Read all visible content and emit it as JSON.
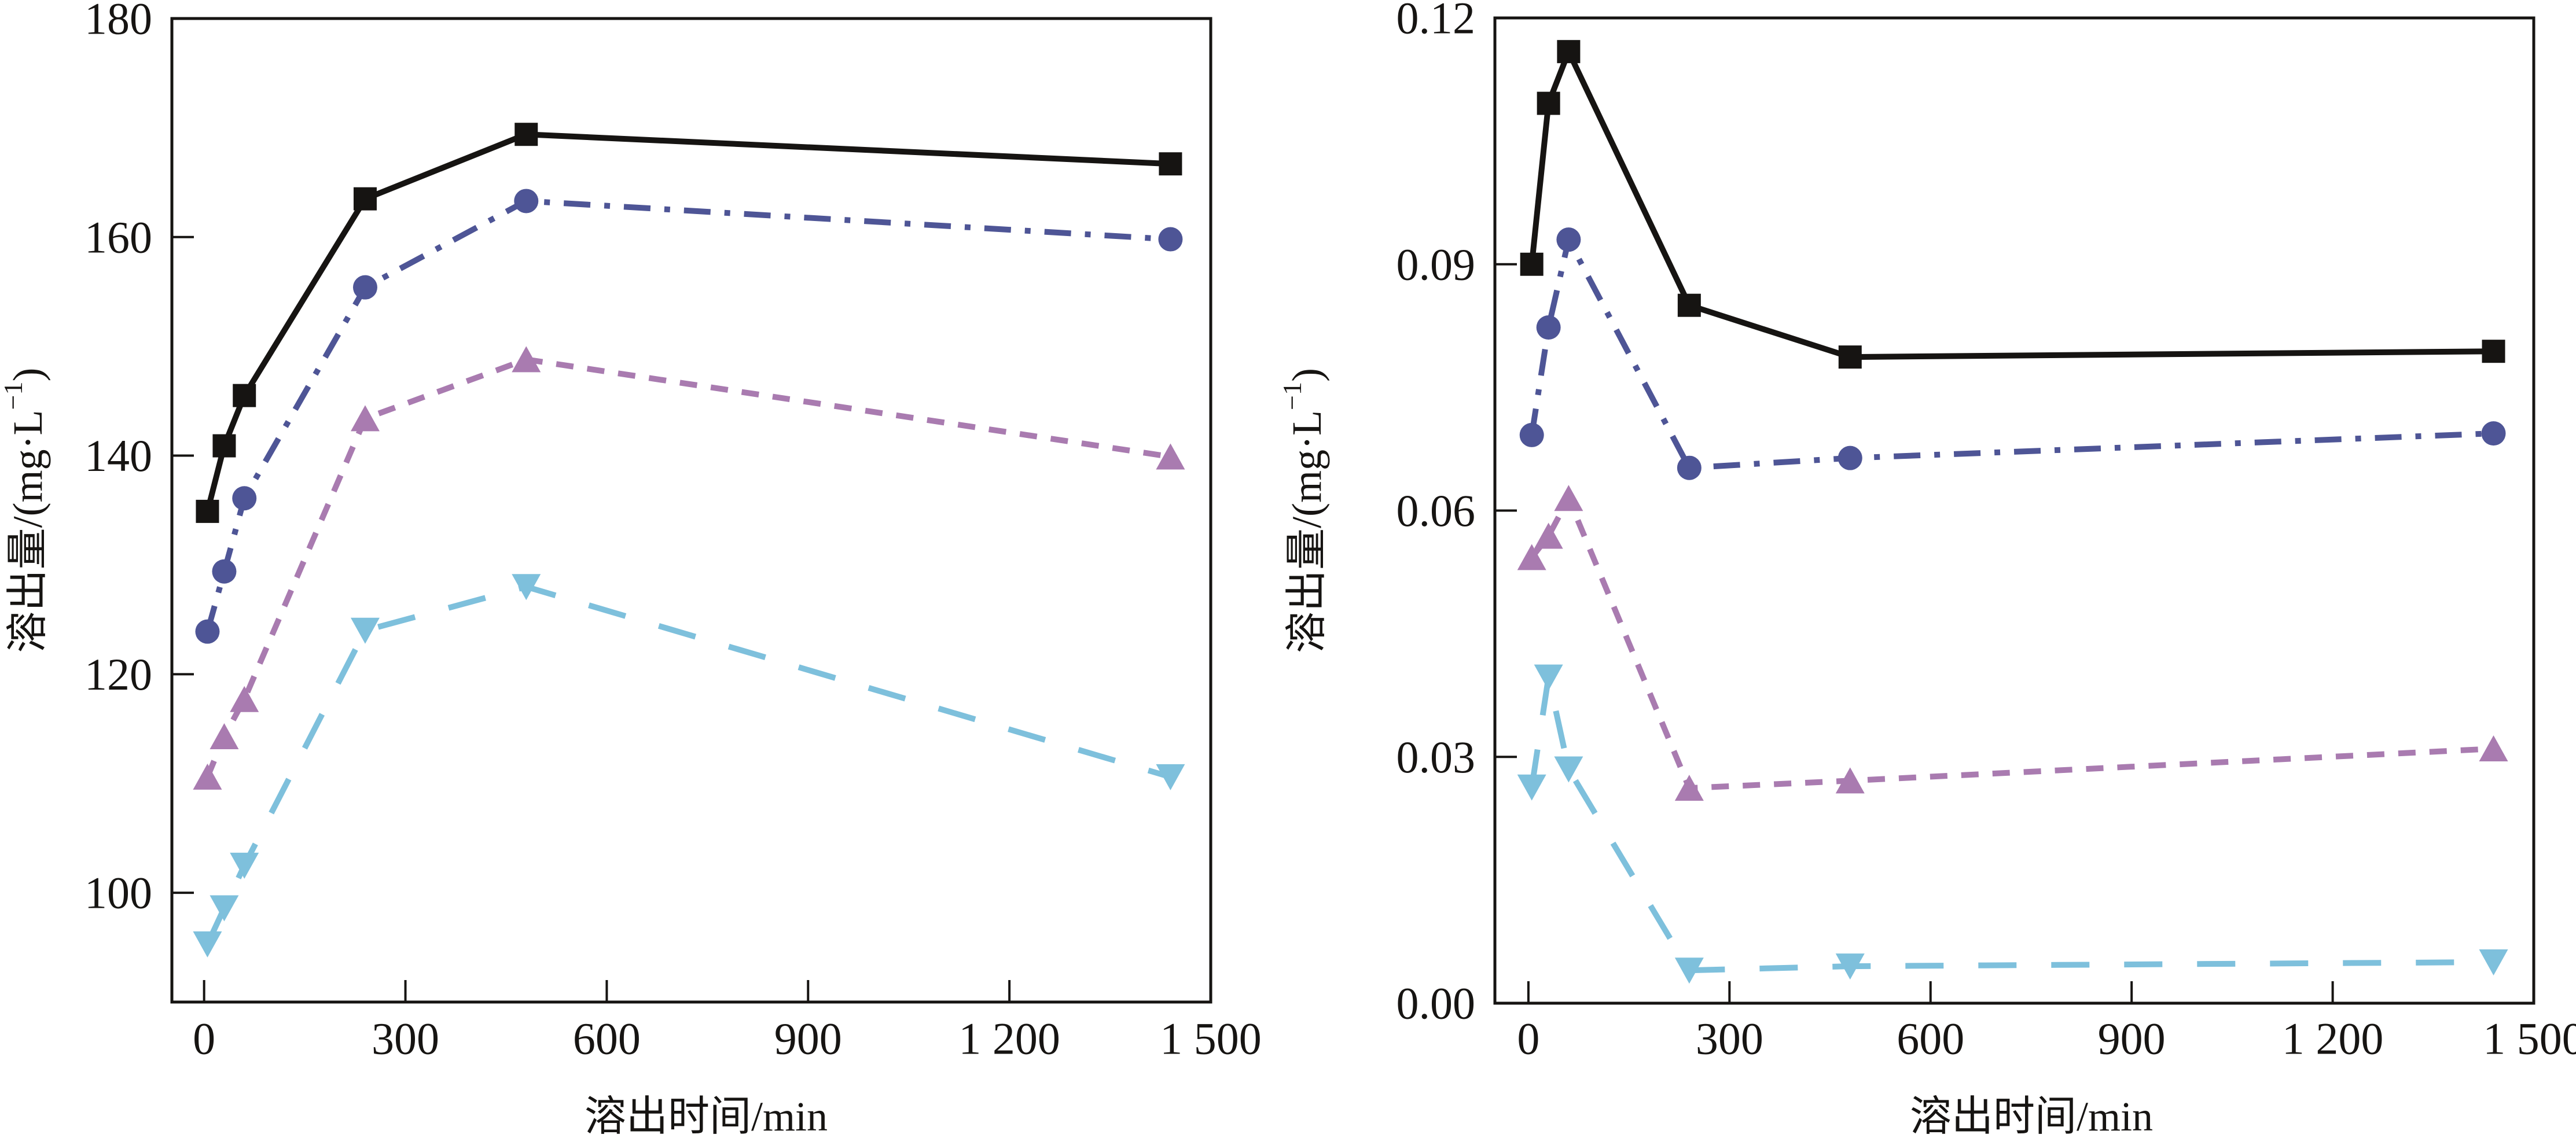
{
  "chart_data": [
    {
      "type": "line",
      "title": "",
      "xlabel": "溶出时间/min",
      "ylabel": "溶出量/(mg·L⁻¹)",
      "ylabel_segments": [
        {
          "text": "溶出量/(mg·L",
          "sup": false
        },
        {
          "text": "−1",
          "sup": true
        },
        {
          "text": ")",
          "sup": false
        }
      ],
      "xlim": [
        -48,
        1500
      ],
      "ylim": [
        90,
        180
      ],
      "xticks": [
        0,
        300,
        600,
        900,
        1200,
        1500
      ],
      "xtick_labels": [
        "0",
        "300",
        "600",
        "900",
        "1 200",
        "1 500"
      ],
      "yticks": [
        100,
        120,
        140,
        160,
        180
      ],
      "ytick_labels": [
        "100",
        "120",
        "140",
        "160",
        "180"
      ],
      "grid": false,
      "legend": null,
      "x": [
        5,
        30,
        60,
        240,
        480,
        1440
      ],
      "series": [
        {
          "marker": "square",
          "line": "solid",
          "color": "#161412",
          "values": [
            134.9,
            140.9,
            145.5,
            163.5,
            169.4,
            166.7
          ]
        },
        {
          "marker": "circle",
          "line": "dash-dot",
          "color": "#4e5596",
          "values": [
            123.9,
            129.4,
            136.1,
            155.4,
            163.3,
            159.8
          ]
        },
        {
          "marker": "triangle-up",
          "line": "short-dash",
          "color": "#a97bb0",
          "values": [
            110.6,
            114.3,
            117.7,
            143.4,
            148.8,
            139.9
          ]
        },
        {
          "marker": "triangle-down",
          "line": "long-dash",
          "color": "#7ec0dc",
          "values": [
            95.3,
            98.6,
            102.5,
            124.0,
            128.0,
            110.6
          ]
        }
      ]
    },
    {
      "type": "line",
      "title": "",
      "xlabel": "溶出时间/min",
      "ylabel": "溶出量/(mg·L⁻¹)",
      "ylabel_segments": [
        {
          "text": "溶出量/(mg·L",
          "sup": false
        },
        {
          "text": "−1",
          "sup": true
        },
        {
          "text": ")",
          "sup": false
        }
      ],
      "xlim": [
        -50,
        1500
      ],
      "ylim": [
        0,
        0.12
      ],
      "xticks": [
        0,
        300,
        600,
        900,
        1200,
        1500
      ],
      "xtick_labels": [
        "0",
        "300",
        "600",
        "900",
        "1 200",
        "1 500"
      ],
      "yticks": [
        0,
        0.03,
        0.06,
        0.09,
        0.12
      ],
      "ytick_labels": [
        "0.00",
        "0.03",
        "0.06",
        "0.09",
        "0.12"
      ],
      "grid": false,
      "legend": null,
      "x": [
        5,
        30,
        60,
        240,
        480,
        1440
      ],
      "series": [
        {
          "marker": "square",
          "line": "solid",
          "color": "#161412",
          "values": [
            0.09,
            0.1096,
            0.1159,
            0.085,
            0.0787,
            0.0794
          ]
        },
        {
          "marker": "circle",
          "line": "dash-dot",
          "color": "#4e5596",
          "values": [
            0.0692,
            0.0823,
            0.093,
            0.0652,
            0.0664,
            0.0694
          ]
        },
        {
          "marker": "triangle-up",
          "line": "short-dash",
          "color": "#a97bb0",
          "values": [
            0.0543,
            0.0569,
            0.0615,
            0.0262,
            0.0271,
            0.031
          ]
        },
        {
          "marker": "triangle-down",
          "line": "long-dash",
          "color": "#7ec0dc",
          "values": [
            0.0263,
            0.0397,
            0.0285,
            0.004,
            0.0045,
            0.005
          ]
        }
      ]
    }
  ]
}
